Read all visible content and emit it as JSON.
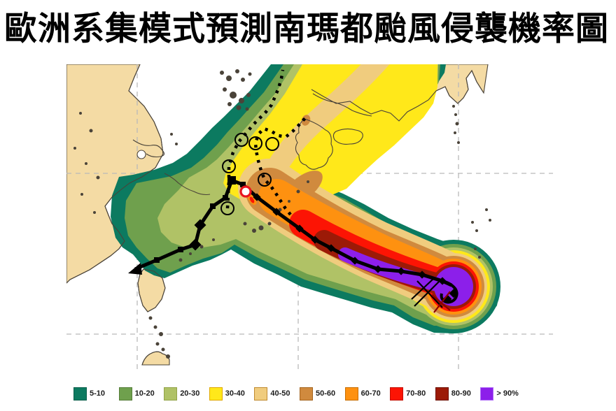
{
  "title": "歐洲系集模式預測南瑪都颱風侵襲機率圖",
  "legend": {
    "items": [
      {
        "label": "5-10",
        "color": "#0c7a60",
        "border": "#0a5f4b"
      },
      {
        "label": "10-20",
        "color": "#6fa04d",
        "border": "#557d39"
      },
      {
        "label": "20-30",
        "color": "#b0c266",
        "border": "#93a348"
      },
      {
        "label": "30-40",
        "color": "#ffe81a",
        "border": "#e0a800"
      },
      {
        "label": "40-50",
        "color": "#f0cc7e",
        "border": "#c08a30"
      },
      {
        "label": "50-60",
        "color": "#d08a3e",
        "border": "#a5651f"
      },
      {
        "label": "60-70",
        "color": "#fe9110",
        "border": "#c86e00"
      },
      {
        "label": "70-80",
        "color": "#fc1404",
        "border": "#c40e00"
      },
      {
        "label": "80-90",
        "color": "#9c1a07",
        "border": "#6e1004"
      },
      {
        "label": "> 90%",
        "color": "#8c1fea",
        "border": "#b06cf8"
      }
    ]
  },
  "map": {
    "colors": {
      "sea": "#ffffff",
      "land": "#f4dba4",
      "coastline": "#4a4339",
      "grid": "#b9b9b9",
      "track": "#000000",
      "position_marker": "#e8141e",
      "cross_mark": "#8b0000"
    }
  }
}
